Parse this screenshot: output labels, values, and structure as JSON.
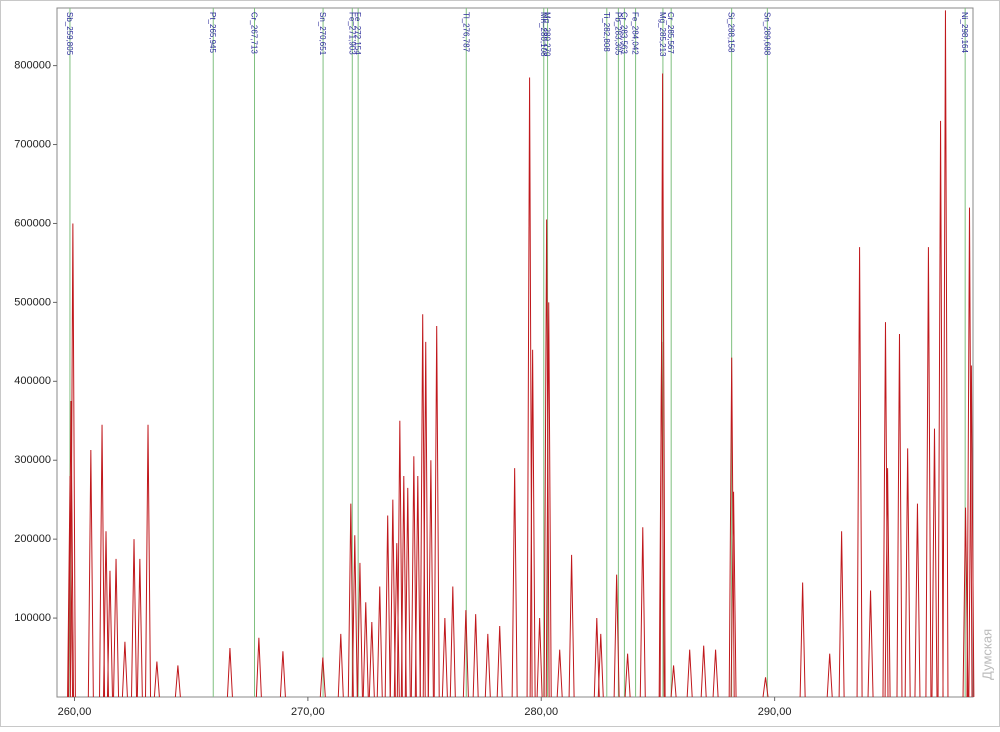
{
  "chart_data": {
    "type": "spectrum",
    "x": [
      259.81,
      259.85,
      259.93,
      260.7,
      261.18,
      261.35,
      261.52,
      261.78,
      262.16,
      262.55,
      262.8,
      263.15,
      263.53,
      264.43,
      266.66,
      267.9,
      268.93,
      270.64,
      271.41,
      271.84,
      272.01,
      272.23,
      272.48,
      272.74,
      273.08,
      273.42,
      273.64,
      273.81,
      273.94,
      274.11,
      274.28,
      274.54,
      274.71,
      274.92,
      275.05,
      275.27,
      275.52,
      275.87,
      276.21,
      276.77,
      277.19,
      277.71,
      278.22,
      278.86,
      279.5,
      279.63,
      279.93,
      280.23,
      280.32,
      280.79,
      281.3,
      282.38,
      282.55,
      283.23,
      283.7,
      284.35,
      285.16,
      285.2,
      285.67,
      286.36,
      286.96,
      287.47,
      288.16,
      288.24,
      289.61,
      291.2,
      292.36,
      292.87,
      293.64,
      294.11,
      294.75,
      294.84,
      295.35,
      295.7,
      296.12,
      296.59,
      296.85,
      297.11,
      297.32,
      298.18,
      298.35,
      298.43
    ],
    "values": [
      280000,
      375000,
      600000,
      313000,
      345000,
      210000,
      160000,
      175000,
      70000,
      200000,
      175000,
      345000,
      45000,
      40000,
      62000,
      75000,
      58000,
      50000,
      80000,
      245000,
      205000,
      170000,
      120000,
      95000,
      140000,
      230000,
      250000,
      195000,
      350000,
      280000,
      265000,
      305000,
      280000,
      485000,
      450000,
      300000,
      470000,
      100000,
      140000,
      110000,
      105000,
      80000,
      90000,
      290000,
      785000,
      440000,
      100000,
      605000,
      500000,
      60000,
      180000,
      100000,
      80000,
      155000,
      55000,
      215000,
      450000,
      790000,
      40000,
      60000,
      65000,
      60000,
      430000,
      260000,
      25000,
      145000,
      55000,
      210000,
      570000,
      135000,
      475000,
      290000,
      460000,
      315000,
      245000,
      570000,
      340000,
      730000,
      870000,
      240000,
      620000,
      420000
    ],
    "color": "#c0181c",
    "lines": [
      {
        "x": 259.805,
        "label": "Sb_259,805"
      },
      {
        "x": 265.945,
        "label": "Pt_265,945"
      },
      {
        "x": 267.713,
        "label": "Cr_267,713"
      },
      {
        "x": 270.651,
        "label": "Sn_270,651"
      },
      {
        "x": 271.903,
        "label": "Fe_271,903"
      },
      {
        "x": 272.154,
        "label": "Fe_272,154"
      },
      {
        "x": 276.787,
        "label": "Tl_276,787"
      },
      {
        "x": 280.108,
        "label": "Mn_280,108"
      },
      {
        "x": 280.27,
        "label": "Mg_280,270"
      },
      {
        "x": 282.808,
        "label": "Ti_282,808"
      },
      {
        "x": 283.305,
        "label": "Pb_283,305"
      },
      {
        "x": 283.563,
        "label": "Cr_283,563"
      },
      {
        "x": 284.042,
        "label": "Fe_284,042"
      },
      {
        "x": 285.213,
        "label": "Mg_285,213"
      },
      {
        "x": 285.567,
        "label": "Cr_285,567"
      },
      {
        "x": 288.158,
        "label": "Si_288,158"
      },
      {
        "x": 289.688,
        "label": "Sn_289,688"
      },
      {
        "x": 298.164,
        "label": "Ni_298,164"
      }
    ],
    "line_color": "#7fc07f",
    "label_color": "#2a2a9a",
    "xlim": [
      259.25,
      298.5
    ],
    "ylim": [
      0,
      873000
    ],
    "xticks": [
      {
        "value": 260,
        "label": "260,00"
      },
      {
        "value": 270,
        "label": "270,00"
      },
      {
        "value": 280,
        "label": "280,00"
      },
      {
        "value": 290,
        "label": "290,00"
      }
    ],
    "yticks": [
      100000,
      200000,
      300000,
      400000,
      500000,
      600000,
      700000,
      800000
    ],
    "watermark": "Думская"
  }
}
